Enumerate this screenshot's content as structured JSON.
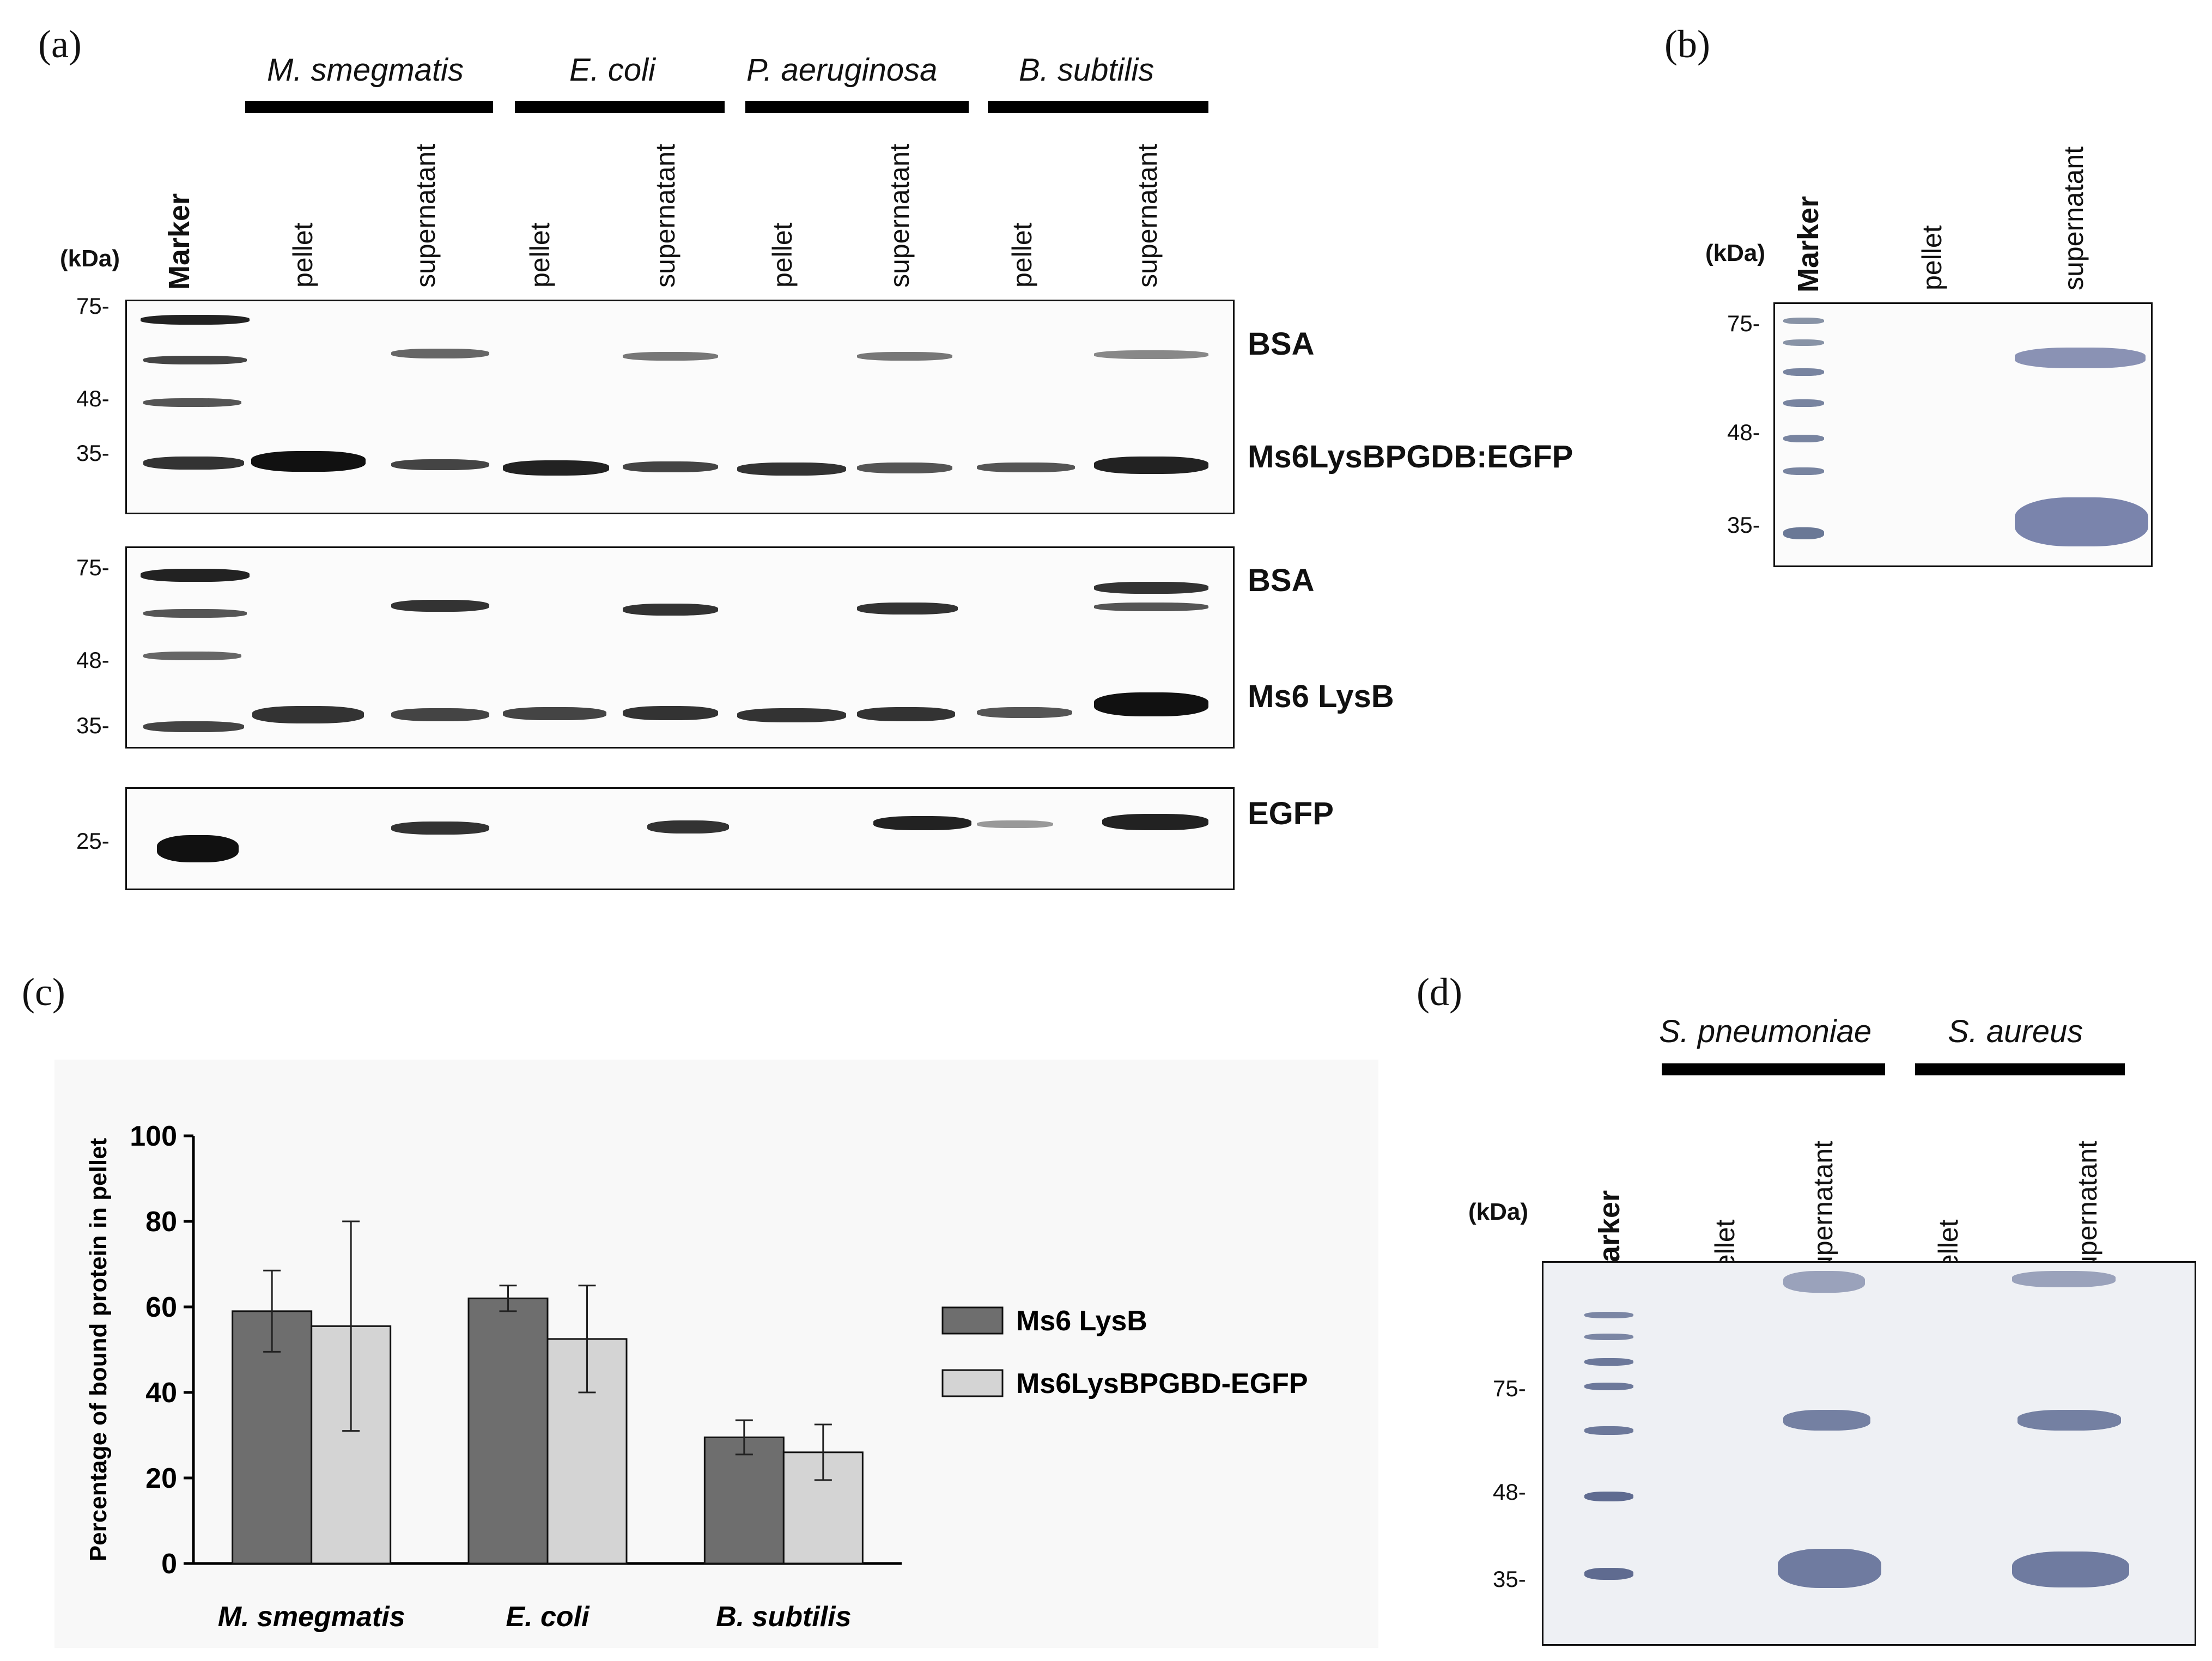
{
  "panels": {
    "a": "(a)",
    "b": "(b)",
    "c": "(c)",
    "d": "(d)"
  },
  "panel_a": {
    "species": [
      "M. smegmatis",
      "E. coli",
      "P. aeruginosa",
      "B. subtilis"
    ],
    "lanes": {
      "marker": "Marker",
      "pellet": "pellet",
      "supernatant": "supernatant"
    },
    "kda": "(kDa)",
    "blot1": {
      "mw": [
        "75-",
        "48-",
        "35-"
      ],
      "labels": [
        "BSA",
        "Ms6LysBPGDB:EGFP"
      ]
    },
    "blot2": {
      "mw": [
        "75-",
        "48-",
        "35-"
      ],
      "labels": [
        "BSA",
        "Ms6 LysB"
      ]
    },
    "blot3": {
      "mw": [
        "25-"
      ],
      "labels": [
        "EGFP"
      ]
    }
  },
  "panel_b": {
    "kda": "(kDa)",
    "marker": "Marker",
    "pellet": "pellet",
    "supernatant": "supernatant",
    "mw": [
      "75-",
      "48-",
      "35-"
    ]
  },
  "panel_d": {
    "species": [
      "S. pneumoniae",
      "S. aureus"
    ],
    "kda": "(kDa)",
    "marker": "Marker",
    "pellet": "pellet",
    "supernatant": "supernatant",
    "mw": [
      "75-",
      "48-",
      "35-"
    ]
  },
  "chart_data": {
    "type": "bar",
    "categories": [
      "M. smegmatis",
      "E. coli",
      "B. subtilis"
    ],
    "series": [
      {
        "name": "Ms6 LysB",
        "values": [
          59,
          62,
          29.5
        ],
        "errors": [
          9.5,
          3,
          4
        ],
        "color": "#6e6e6e"
      },
      {
        "name": "Ms6LysBPGBD-EGFP",
        "values": [
          55.5,
          52.5,
          26
        ],
        "errors": [
          24.5,
          12.5,
          6.5
        ],
        "color": "#d4d4d4"
      }
    ],
    "xlabel": "",
    "ylabel": "Percentage of bound protein in pellet",
    "ylim": [
      0,
      100
    ],
    "yticks": [
      "0",
      "20",
      "40",
      "60",
      "80",
      "100"
    ],
    "legend_position": "right",
    "grid": false
  }
}
